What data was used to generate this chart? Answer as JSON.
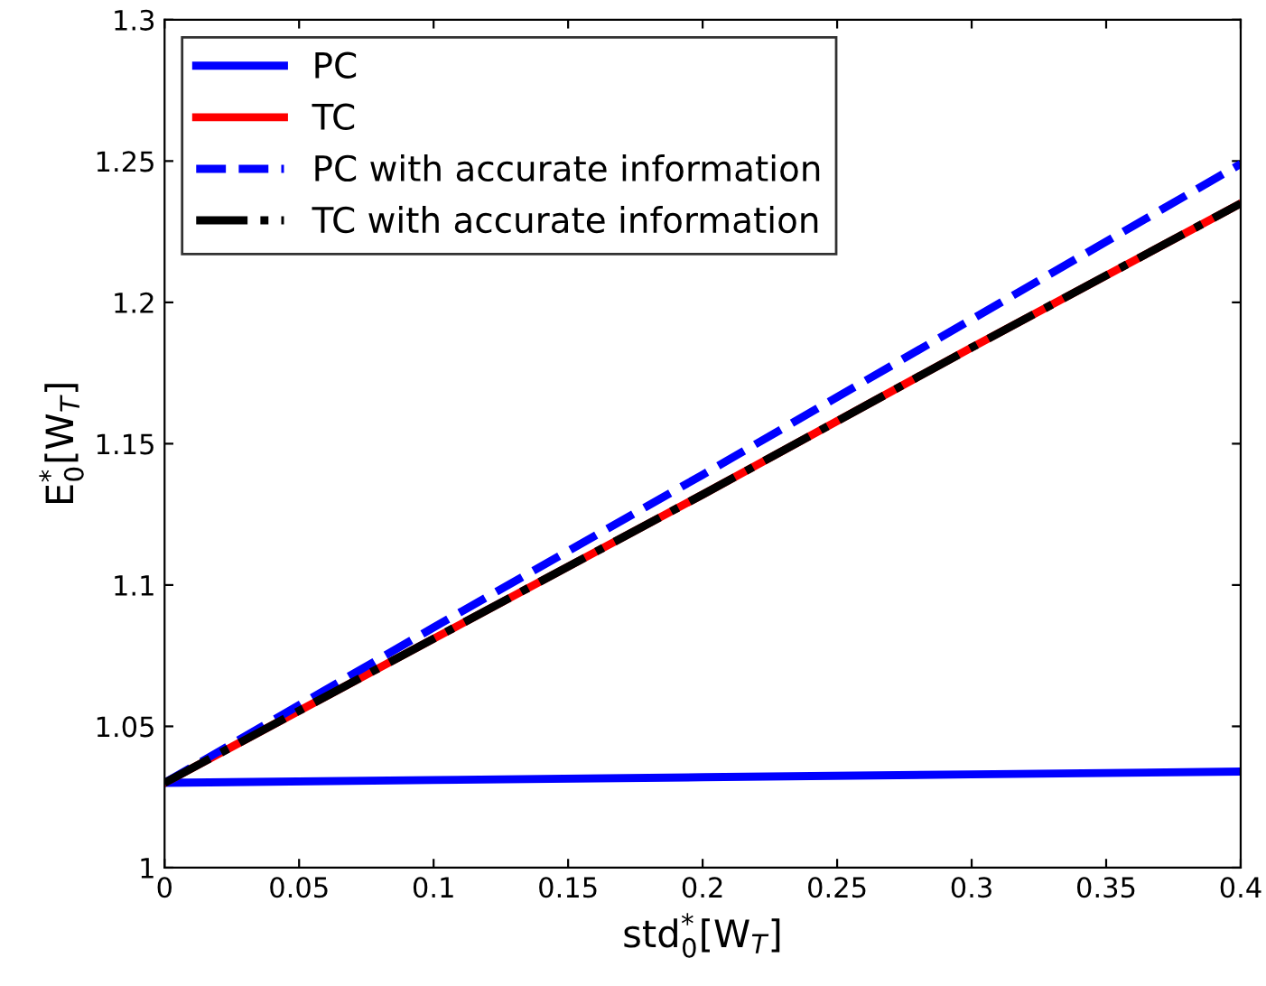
{
  "chart_data": {
    "type": "line",
    "xlabel": "std$^{*}$$_{0}$[W$_{T}$]",
    "ylabel": "E$^{*}$$_{0}$[W$_{T}$]",
    "xlim": [
      0,
      0.4
    ],
    "ylim": [
      1,
      1.3
    ],
    "xticks": [
      0,
      0.05,
      0.1,
      0.15,
      0.2,
      0.25,
      0.3,
      0.35,
      0.4
    ],
    "yticks": [
      1,
      1.05,
      1.1,
      1.15,
      1.2,
      1.25,
      1.3
    ],
    "grid": false,
    "legend": "top left",
    "marker": "none",
    "series": [
      {
        "name": "PC",
        "color": "#0000ff",
        "x": [
          0,
          0.1,
          0.2,
          0.3,
          0.4
        ],
        "values": [
          1.03,
          1.031,
          1.032,
          1.033,
          1.034
        ],
        "line_style": "solid"
      },
      {
        "name": "TC",
        "color": "#ff0000",
        "x": [
          0,
          0.1,
          0.2,
          0.3,
          0.4
        ],
        "values": [
          1.03,
          1.081,
          1.132,
          1.184,
          1.235
        ],
        "line_style": "solid"
      },
      {
        "name": "PC with accurate information",
        "color": "#0000ff",
        "x": [
          0,
          0.1,
          0.2,
          0.3,
          0.4
        ],
        "values": [
          1.03,
          1.085,
          1.139,
          1.194,
          1.249
        ],
        "line_style": "dashed"
      },
      {
        "name": "TC with accurate information",
        "color": "#000000",
        "x": [
          0,
          0.1,
          0.2,
          0.3,
          0.4
        ],
        "values": [
          1.03,
          1.081,
          1.132,
          1.184,
          1.235
        ],
        "line_style": "dashdot"
      }
    ]
  }
}
